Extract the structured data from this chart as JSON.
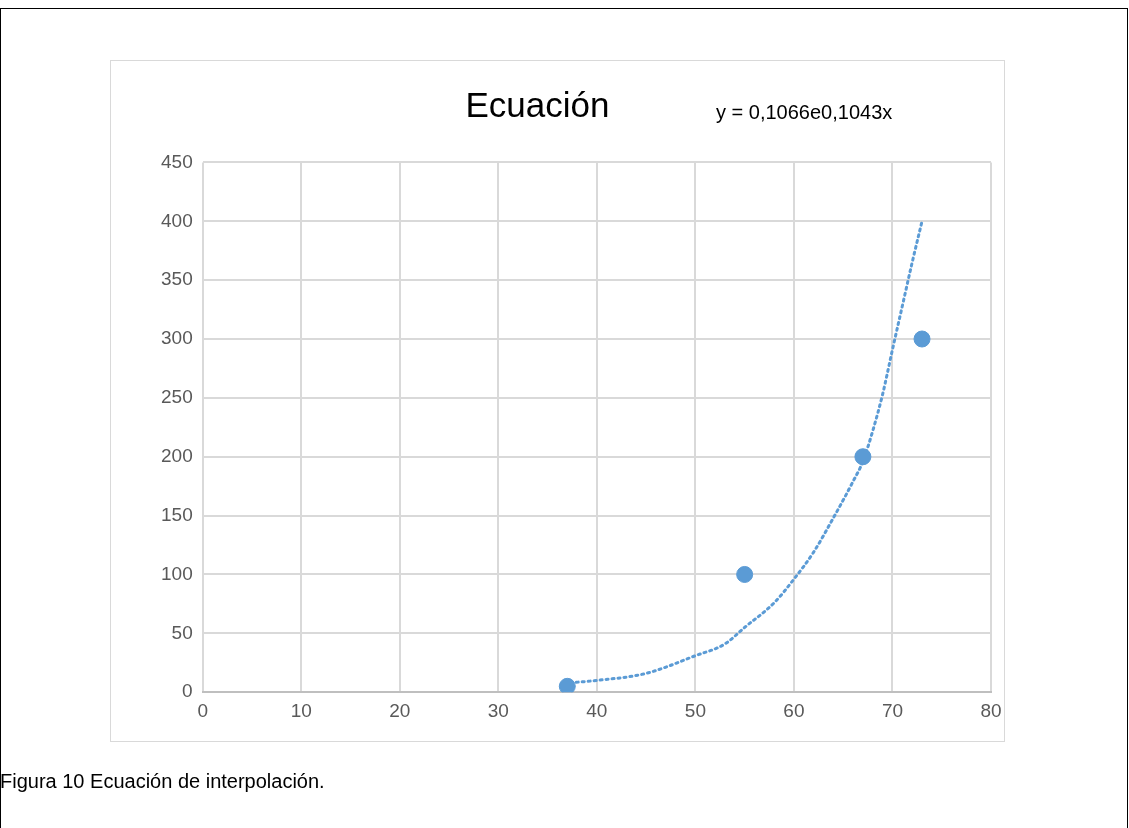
{
  "chart_data": {
    "type": "scatter",
    "title": "Ecuación",
    "annotations": [
      "y = 0,1066e0,1043x",
      "Figura 10 Ecuación de interpolación."
    ],
    "series": [
      {
        "type": "scatter",
        "color": "#5b9bd5",
        "x": [
          37,
          55,
          67,
          73
        ],
        "values": [
          5,
          100,
          200,
          300
        ],
        "marker": "circle"
      },
      {
        "type": "line",
        "color": "#5b9bd5",
        "line_style": "dotted",
        "marker": "none",
        "x": [
          37.3,
          40,
          45,
          50,
          53,
          55,
          58,
          60,
          62,
          64,
          66,
          67,
          68,
          69,
          70,
          71,
          72,
          73
        ],
        "values": [
          8,
          10,
          16,
          31,
          41,
          55,
          76,
          96,
          119,
          148,
          179,
          196,
          222,
          253,
          291,
          328,
          365,
          400
        ]
      }
    ],
    "xlim": [
      0,
      80
    ],
    "xticks": [
      0,
      10,
      20,
      30,
      40,
      50,
      60,
      70,
      80
    ],
    "ylim": [
      0,
      450
    ],
    "yticks": [
      0,
      50,
      100,
      150,
      200,
      250,
      300,
      350,
      400,
      450
    ],
    "grid": true,
    "legend": false
  }
}
